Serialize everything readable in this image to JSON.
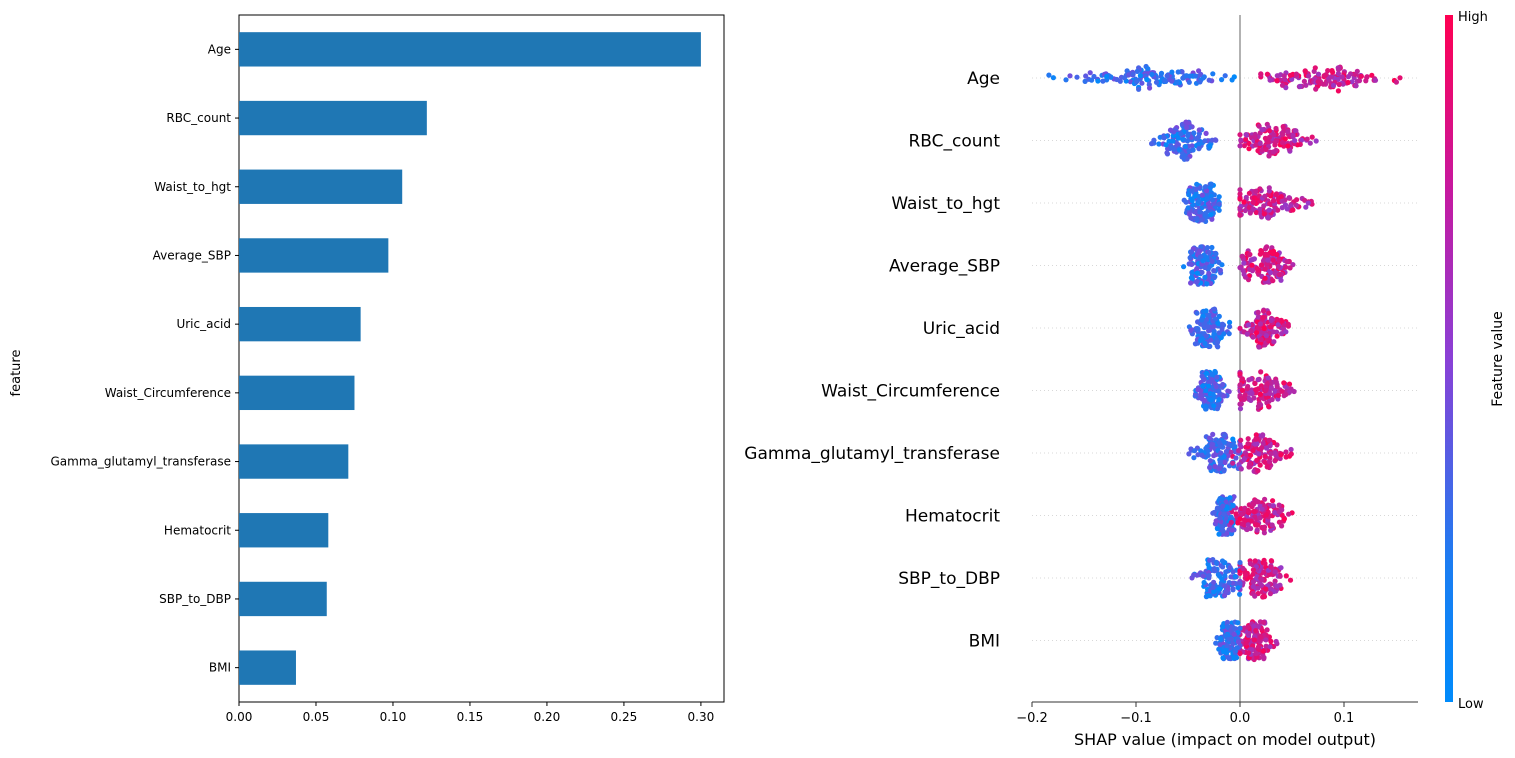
{
  "chart_data": [
    {
      "type": "bar",
      "orientation": "horizontal",
      "ylabel": "feature",
      "xlabel": "",
      "categories": [
        "Age",
        "RBC_count",
        "Waist_to_hgt",
        "Average_SBP",
        "Uric_acid",
        "Waist_Circumference",
        "Gamma_glutamyl_transferase",
        "Hematocrit",
        "SBP_to_DBP",
        "BMI"
      ],
      "values": [
        0.3,
        0.122,
        0.106,
        0.097,
        0.079,
        0.075,
        0.071,
        0.058,
        0.057,
        0.037
      ],
      "xlim": [
        0,
        0.315
      ],
      "xticks": [
        0.0,
        0.05,
        0.1,
        0.15,
        0.2,
        0.25,
        0.3
      ],
      "xtick_labels": [
        "0.00",
        "0.05",
        "0.10",
        "0.15",
        "0.20",
        "0.25",
        "0.30"
      ],
      "bar_color": "#1f77b4",
      "grid": false
    },
    {
      "type": "scatter",
      "subtype": "shap-beeswarm",
      "xlabel": "SHAP value (impact on model output)",
      "categories": [
        "Age",
        "RBC_count",
        "Waist_to_hgt",
        "Average_SBP",
        "Uric_acid",
        "Waist_Circumference",
        "Gamma_glutamyl_transferase",
        "Hematocrit",
        "SBP_to_DBP",
        "BMI"
      ],
      "xlim": [
        -0.22,
        0.19
      ],
      "xticks": [
        -0.2,
        -0.1,
        0.0,
        0.1
      ],
      "xtick_labels": [
        "−0.2",
        "−0.1",
        "0.0",
        "0.1"
      ],
      "feature_shap": [
        {
          "name": "Age",
          "low_range": [
            -0.2,
            0.0
          ],
          "high_range": [
            0.02,
            0.17
          ],
          "low_center": -0.09,
          "high_center": 0.08
        },
        {
          "name": "RBC_count",
          "low_range": [
            -0.085,
            -0.01
          ],
          "high_range": [
            0.0,
            0.08
          ],
          "low_center": -0.055,
          "high_center": 0.03
        },
        {
          "name": "Waist_to_hgt",
          "low_range": [
            -0.06,
            -0.02
          ],
          "high_range": [
            0.0,
            0.095
          ],
          "low_center": -0.035,
          "high_center": 0.025
        },
        {
          "name": "Average_SBP",
          "low_range": [
            -0.055,
            -0.015
          ],
          "high_range": [
            0.0,
            0.06
          ],
          "low_center": -0.035,
          "high_center": 0.025
        },
        {
          "name": "Uric_acid",
          "low_range": [
            -0.05,
            -0.01
          ],
          "high_range": [
            0.0,
            0.052
          ],
          "low_center": -0.03,
          "high_center": 0.025
        },
        {
          "name": "Waist_Circumference",
          "low_range": [
            -0.048,
            -0.01
          ],
          "high_range": [
            0.0,
            0.075
          ],
          "low_center": -0.028,
          "high_center": 0.02
        },
        {
          "name": "Gamma_glutamyl_transferase",
          "low_range": [
            -0.06,
            0.0
          ],
          "high_range": [
            -0.01,
            0.05
          ],
          "low_center": -0.02,
          "high_center": 0.02
        },
        {
          "name": "Hematocrit",
          "low_range": [
            -0.028,
            -0.005
          ],
          "high_range": [
            -0.01,
            0.063
          ],
          "low_center": -0.015,
          "high_center": 0.02
        },
        {
          "name": "SBP_to_DBP",
          "low_range": [
            -0.058,
            0.0
          ],
          "high_range": [
            0.0,
            0.053
          ],
          "low_center": -0.02,
          "high_center": 0.02
        },
        {
          "name": "BMI",
          "low_range": [
            -0.028,
            0.0
          ],
          "high_range": [
            0.0,
            0.044
          ],
          "low_center": -0.01,
          "high_center": 0.015
        }
      ],
      "colorbar": {
        "label": "Feature value",
        "high_label": "High",
        "low_label": "Low",
        "low_color": "#008bfb",
        "high_color": "#ff0052"
      }
    }
  ]
}
